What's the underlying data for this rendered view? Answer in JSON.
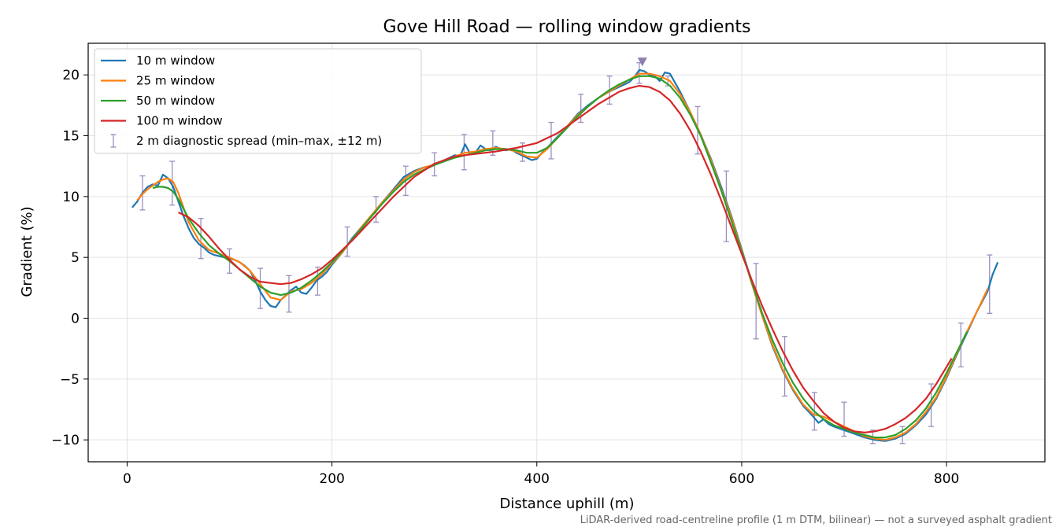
{
  "chart_data": {
    "type": "line",
    "title": "Gove Hill Road — rolling window gradients",
    "xlabel": "Distance uphill (m)",
    "ylabel": "Gradient (%)",
    "xlim": [
      -38,
      896
    ],
    "ylim": [
      -11.8,
      22.6
    ],
    "xticks": [
      0,
      200,
      400,
      600,
      800
    ],
    "yticks": [
      -10,
      -5,
      0,
      5,
      10,
      15,
      20
    ],
    "xtick_labels": [
      "0",
      "200",
      "400",
      "600",
      "800"
    ],
    "ytick_labels": [
      "−10",
      "−5",
      "0",
      "5",
      "10",
      "15",
      "20"
    ],
    "grid": true,
    "legend_position": "top-left",
    "footnote": "LiDAR-derived road-centreline profile (1 m DTM, bilinear) — not a surveyed asphalt gradient",
    "peak_marker": {
      "x": 503,
      "y": 21.1,
      "color": "#8c7fb0"
    },
    "series": [
      {
        "name": "10 m window",
        "color": "#1f77b4",
        "x": [
          5,
          10,
          15,
          20,
          25,
          30,
          35,
          40,
          45,
          50,
          55,
          60,
          65,
          70,
          75,
          80,
          85,
          90,
          95,
          100,
          105,
          110,
          115,
          120,
          125,
          130,
          135,
          140,
          145,
          150,
          155,
          160,
          165,
          170,
          175,
          180,
          185,
          190,
          195,
          200,
          210,
          220,
          230,
          240,
          250,
          260,
          270,
          280,
          290,
          300,
          310,
          320,
          325,
          330,
          335,
          340,
          345,
          350,
          355,
          360,
          365,
          370,
          375,
          380,
          385,
          390,
          395,
          400,
          405,
          410,
          420,
          430,
          440,
          450,
          460,
          470,
          480,
          490,
          495,
          500,
          505,
          510,
          515,
          520,
          525,
          530,
          540,
          550,
          560,
          570,
          580,
          590,
          600,
          610,
          620,
          630,
          640,
          650,
          660,
          670,
          675,
          680,
          685,
          690,
          700,
          710,
          720,
          730,
          740,
          750,
          760,
          770,
          780,
          790,
          800,
          810,
          820,
          830,
          840,
          845,
          850
        ],
        "y": [
          9.1,
          9.6,
          10.3,
          10.8,
          11.0,
          10.9,
          11.8,
          11.5,
          10.8,
          9.6,
          8.4,
          7.4,
          6.6,
          6.1,
          5.8,
          5.4,
          5.2,
          5.1,
          5.0,
          4.9,
          4.8,
          4.6,
          4.3,
          3.9,
          3.1,
          2.2,
          1.5,
          1.0,
          0.9,
          1.5,
          1.9,
          2.3,
          2.6,
          2.1,
          2.0,
          2.5,
          3.1,
          3.4,
          3.8,
          4.4,
          5.4,
          6.6,
          7.6,
          8.6,
          9.6,
          10.6,
          11.6,
          12.1,
          12.4,
          12.6,
          13.0,
          13.4,
          13.3,
          14.3,
          13.5,
          13.6,
          14.2,
          13.9,
          13.8,
          14.1,
          13.9,
          13.8,
          13.9,
          13.6,
          13.4,
          13.2,
          13.0,
          13.1,
          13.6,
          14.0,
          14.9,
          15.8,
          16.8,
          17.5,
          18.1,
          18.6,
          19.0,
          19.4,
          19.8,
          20.4,
          20.3,
          20.0,
          19.9,
          19.5,
          20.2,
          20.1,
          18.6,
          16.9,
          15.1,
          13.1,
          10.8,
          8.4,
          5.7,
          2.9,
          0.2,
          -2.3,
          -4.3,
          -5.9,
          -7.2,
          -8.1,
          -8.6,
          -8.3,
          -8.7,
          -8.9,
          -9.2,
          -9.5,
          -9.8,
          -10.0,
          -10.1,
          -9.9,
          -9.5,
          -8.8,
          -7.9,
          -6.6,
          -4.9,
          -3.0,
          -1.2,
          0.6,
          2.2,
          3.6,
          4.6
        ]
      },
      {
        "name": "25 m window",
        "color": "#ff7f0e",
        "x": [
          10,
          15,
          20,
          25,
          30,
          35,
          40,
          45,
          50,
          55,
          60,
          70,
          80,
          90,
          100,
          110,
          120,
          130,
          140,
          150,
          160,
          170,
          180,
          190,
          200,
          210,
          220,
          230,
          240,
          250,
          260,
          270,
          280,
          290,
          300,
          310,
          320,
          330,
          340,
          350,
          360,
          370,
          380,
          390,
          400,
          410,
          420,
          430,
          440,
          450,
          460,
          470,
          480,
          490,
          500,
          510,
          520,
          530,
          540,
          550,
          560,
          570,
          580,
          590,
          600,
          610,
          620,
          630,
          640,
          650,
          660,
          670,
          680,
          690,
          700,
          710,
          720,
          730,
          740,
          750,
          760,
          770,
          780,
          790,
          800,
          810,
          820,
          830,
          840
        ],
        "y": [
          9.7,
          10.2,
          10.6,
          10.9,
          11.2,
          11.4,
          11.5,
          11.2,
          10.3,
          9.1,
          7.9,
          6.4,
          5.6,
          5.3,
          5.0,
          4.6,
          3.9,
          2.8,
          1.7,
          1.5,
          2.2,
          2.4,
          2.9,
          3.6,
          4.5,
          5.4,
          6.5,
          7.6,
          8.6,
          9.6,
          10.5,
          11.4,
          12.0,
          12.4,
          12.6,
          13.0,
          13.3,
          13.6,
          13.7,
          13.9,
          14.0,
          13.9,
          13.7,
          13.3,
          13.2,
          13.9,
          14.8,
          15.8,
          16.7,
          17.4,
          18.1,
          18.6,
          19.1,
          19.6,
          20.1,
          20.1,
          19.9,
          19.5,
          18.4,
          16.9,
          15.1,
          13.0,
          10.6,
          8.3,
          5.6,
          2.8,
          0.2,
          -2.2,
          -4.2,
          -5.8,
          -7.1,
          -7.9,
          -8.1,
          -8.5,
          -8.9,
          -9.3,
          -9.7,
          -9.9,
          -10.0,
          -9.8,
          -9.4,
          -8.7,
          -7.7,
          -6.5,
          -4.8,
          -2.9,
          -1.1,
          0.6,
          2.4
        ]
      },
      {
        "name": "50 m window",
        "color": "#2ca02c",
        "x": [
          25,
          30,
          35,
          40,
          45,
          50,
          55,
          60,
          70,
          80,
          90,
          100,
          110,
          120,
          130,
          140,
          150,
          160,
          170,
          180,
          190,
          200,
          210,
          220,
          230,
          240,
          250,
          260,
          270,
          280,
          290,
          300,
          310,
          320,
          330,
          340,
          350,
          360,
          370,
          380,
          390,
          400,
          410,
          420,
          430,
          440,
          450,
          460,
          470,
          480,
          490,
          500,
          510,
          520,
          530,
          540,
          550,
          560,
          570,
          580,
          590,
          600,
          610,
          620,
          630,
          640,
          650,
          660,
          670,
          680,
          690,
          700,
          710,
          720,
          730,
          740,
          750,
          760,
          770,
          780,
          790,
          800,
          810,
          820
        ],
        "y": [
          10.7,
          10.8,
          10.8,
          10.7,
          10.4,
          9.8,
          9.0,
          8.2,
          7.0,
          6.0,
          5.3,
          4.7,
          4.0,
          3.3,
          2.6,
          2.1,
          1.9,
          2.1,
          2.5,
          3.1,
          3.8,
          4.6,
          5.5,
          6.5,
          7.5,
          8.5,
          9.5,
          10.4,
          11.2,
          11.8,
          12.2,
          12.6,
          12.9,
          13.2,
          13.4,
          13.6,
          13.8,
          13.9,
          13.9,
          13.8,
          13.6,
          13.6,
          14.0,
          14.8,
          15.7,
          16.6,
          17.4,
          18.1,
          18.7,
          19.2,
          19.6,
          19.9,
          19.9,
          19.7,
          19.1,
          18.1,
          16.7,
          15.0,
          12.8,
          10.5,
          8.0,
          5.5,
          2.9,
          0.4,
          -1.8,
          -3.7,
          -5.3,
          -6.6,
          -7.6,
          -8.3,
          -8.8,
          -9.1,
          -9.4,
          -9.6,
          -9.8,
          -9.8,
          -9.6,
          -9.1,
          -8.4,
          -7.4,
          -6.1,
          -4.5,
          -2.8,
          -1.1
        ]
      },
      {
        "name": "100 m window",
        "color": "#d62728",
        "x": [
          50,
          60,
          70,
          80,
          90,
          100,
          110,
          120,
          130,
          140,
          150,
          160,
          170,
          180,
          190,
          200,
          220,
          240,
          260,
          280,
          300,
          320,
          340,
          360,
          380,
          400,
          420,
          440,
          460,
          480,
          490,
          500,
          510,
          520,
          530,
          540,
          550,
          560,
          570,
          580,
          590,
          600,
          610,
          620,
          630,
          640,
          650,
          660,
          670,
          680,
          690,
          700,
          710,
          720,
          730,
          740,
          750,
          760,
          770,
          780,
          790,
          800,
          805
        ],
        "y": [
          8.7,
          8.3,
          7.6,
          6.7,
          5.7,
          4.8,
          4.0,
          3.4,
          3.0,
          2.9,
          2.8,
          2.9,
          3.2,
          3.6,
          4.1,
          4.8,
          6.4,
          8.2,
          10.0,
          11.6,
          12.7,
          13.3,
          13.5,
          13.7,
          14.0,
          14.4,
          15.2,
          16.4,
          17.6,
          18.6,
          18.9,
          19.1,
          19.0,
          18.6,
          17.9,
          16.8,
          15.4,
          13.7,
          11.8,
          9.7,
          7.5,
          5.3,
          3.1,
          1.0,
          -0.9,
          -2.7,
          -4.3,
          -5.7,
          -6.8,
          -7.8,
          -8.5,
          -9.0,
          -9.3,
          -9.4,
          -9.3,
          -9.1,
          -8.7,
          -8.2,
          -7.5,
          -6.6,
          -5.4,
          -4.0,
          -3.3
        ]
      },
      {
        "name": "2 m diagnostic spread (min–max, ±12 m)",
        "type": "errorbar",
        "color": "#9b8fbf",
        "x": [
          15,
          44,
          72,
          100,
          130,
          158,
          186,
          215,
          243,
          272,
          300,
          329,
          357,
          386,
          414,
          443,
          471,
          500,
          528,
          557,
          585,
          614,
          642,
          671,
          700,
          728,
          757,
          785,
          814,
          842
        ],
        "low": [
          8.9,
          9.3,
          4.9,
          3.7,
          0.8,
          0.5,
          1.9,
          5.1,
          7.9,
          10.1,
          11.7,
          12.2,
          13.4,
          12.9,
          13.1,
          16.1,
          17.6,
          19.3,
          19.1,
          13.5,
          6.3,
          -1.7,
          -6.4,
          -9.2,
          -9.7,
          -10.3,
          -10.3,
          -8.9,
          -4.0,
          0.4
        ],
        "high": [
          11.7,
          12.9,
          8.2,
          5.7,
          4.1,
          3.5,
          4.2,
          7.5,
          10.0,
          12.5,
          13.6,
          15.1,
          15.4,
          14.4,
          16.1,
          18.4,
          19.9,
          21.0,
          19.9,
          17.4,
          12.1,
          4.5,
          -1.5,
          -6.1,
          -6.9,
          -9.2,
          -8.9,
          -5.4,
          -0.4,
          5.2
        ]
      }
    ]
  }
}
